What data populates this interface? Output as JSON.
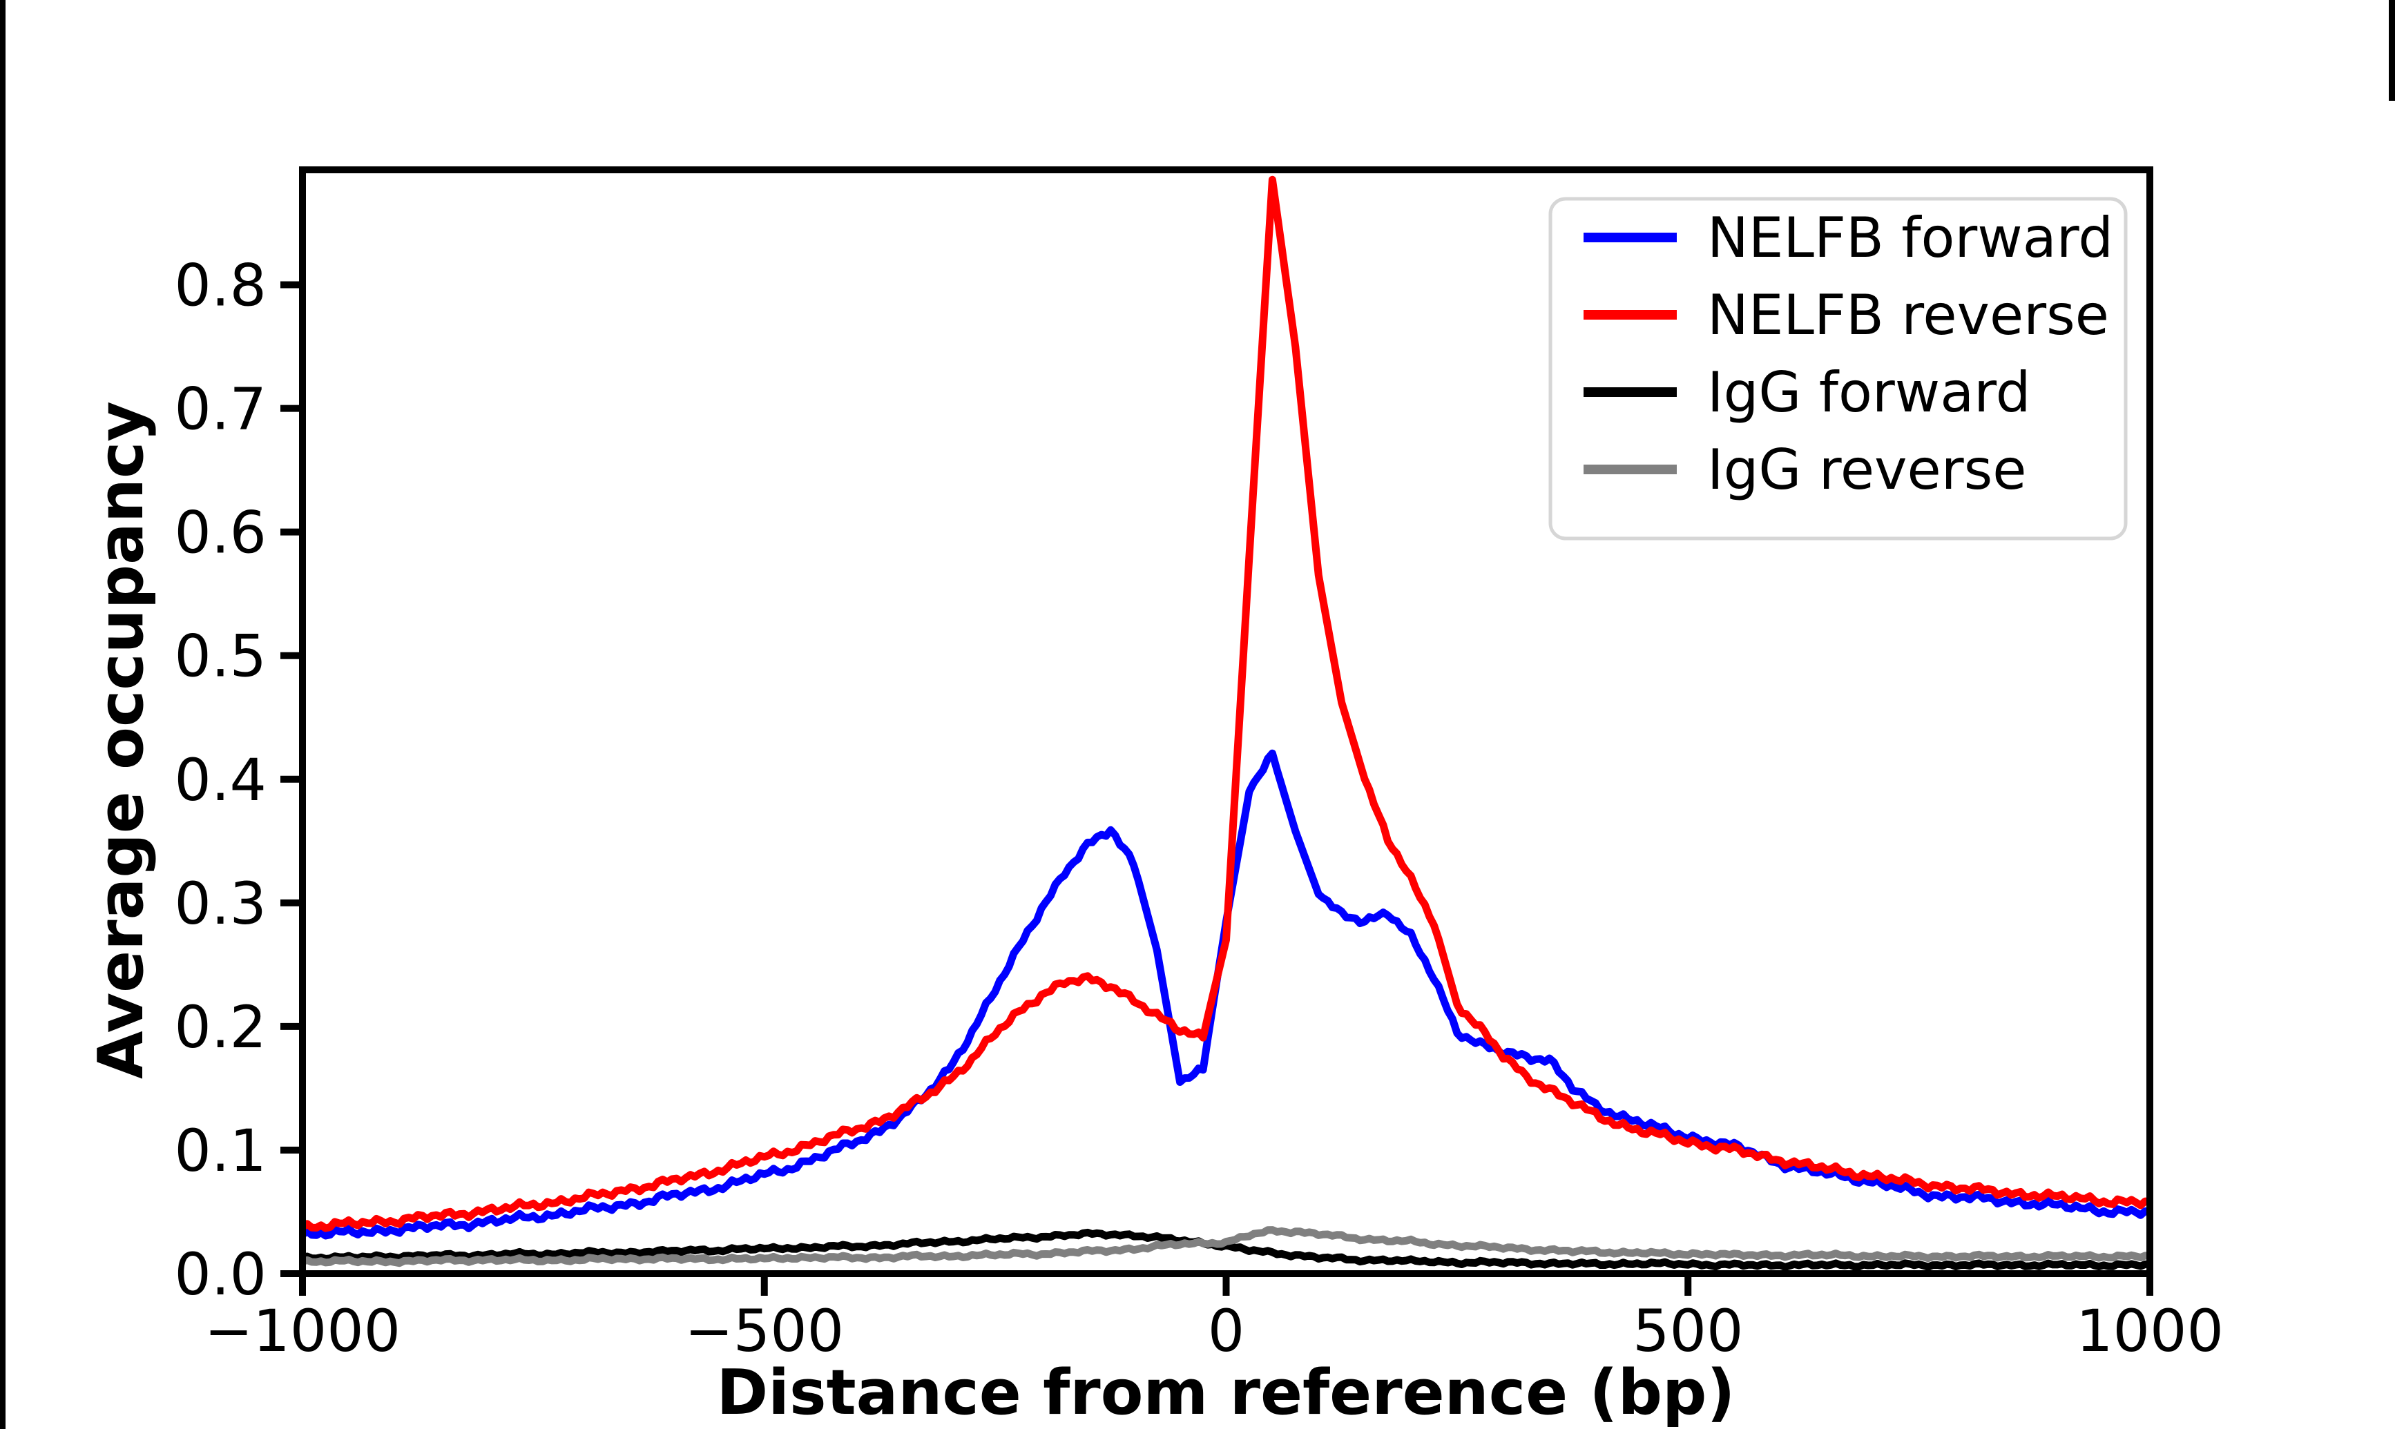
{
  "figure": {
    "background": "#ffffff",
    "edge_artifact_color": "#000000"
  },
  "chart_data": {
    "type": "line",
    "title": "",
    "xlabel": "Distance from reference (bp)",
    "ylabel": "Average occupancy",
    "xlim": [
      -1000,
      1000
    ],
    "ylim": [
      0,
      0.893
    ],
    "grid": false,
    "legend_position": "upper right",
    "x_ticks": [
      -1000,
      -500,
      0,
      500,
      1000
    ],
    "x_tick_labels": [
      "−1000",
      "−500",
      "0",
      "500",
      "1000"
    ],
    "y_ticks": [
      0.0,
      0.1,
      0.2,
      0.3,
      0.4,
      0.5,
      0.6,
      0.7,
      0.8
    ],
    "y_tick_labels": [
      "0.0",
      "0.1",
      "0.2",
      "0.3",
      "0.4",
      "0.5",
      "0.6",
      "0.7",
      "0.8"
    ],
    "x": [
      -1000,
      -975,
      -950,
      -925,
      -900,
      -875,
      -850,
      -825,
      -800,
      -775,
      -750,
      -725,
      -700,
      -675,
      -650,
      -625,
      -600,
      -575,
      -550,
      -525,
      -500,
      -475,
      -450,
      -425,
      -400,
      -375,
      -350,
      -325,
      -300,
      -275,
      -250,
      -225,
      -200,
      -175,
      -150,
      -125,
      -100,
      -75,
      -50,
      -25,
      0,
      25,
      50,
      75,
      100,
      125,
      150,
      175,
      200,
      225,
      250,
      275,
      300,
      325,
      350,
      375,
      400,
      425,
      450,
      475,
      500,
      525,
      550,
      575,
      600,
      625,
      650,
      675,
      700,
      725,
      750,
      775,
      800,
      825,
      850,
      875,
      900,
      925,
      950,
      975,
      1000
    ],
    "series": [
      {
        "name": "NELFB forward",
        "color": "#0000ff",
        "values": [
          0.032,
          0.033,
          0.033,
          0.034,
          0.036,
          0.037,
          0.039,
          0.04,
          0.042,
          0.044,
          0.046,
          0.048,
          0.051,
          0.053,
          0.056,
          0.059,
          0.063,
          0.066,
          0.07,
          0.075,
          0.08,
          0.085,
          0.092,
          0.099,
          0.107,
          0.116,
          0.128,
          0.144,
          0.166,
          0.196,
          0.229,
          0.263,
          0.296,
          0.324,
          0.346,
          0.36,
          0.332,
          0.262,
          0.155,
          0.166,
          0.285,
          0.39,
          0.42,
          0.358,
          0.307,
          0.29,
          0.286,
          0.292,
          0.272,
          0.24,
          0.196,
          0.185,
          0.179,
          0.176,
          0.173,
          0.15,
          0.136,
          0.128,
          0.122,
          0.116,
          0.111,
          0.107,
          0.103,
          0.097,
          0.089,
          0.084,
          0.081,
          0.078,
          0.074,
          0.07,
          0.065,
          0.063,
          0.062,
          0.06,
          0.058,
          0.057,
          0.055,
          0.053,
          0.051,
          0.05,
          0.049
        ]
      },
      {
        "name": "NELFB reverse",
        "color": "#ff0000",
        "values": [
          0.038,
          0.039,
          0.04,
          0.042,
          0.043,
          0.045,
          0.047,
          0.049,
          0.051,
          0.053,
          0.056,
          0.058,
          0.061,
          0.064,
          0.068,
          0.071,
          0.075,
          0.079,
          0.084,
          0.089,
          0.094,
          0.099,
          0.105,
          0.111,
          0.117,
          0.124,
          0.133,
          0.143,
          0.157,
          0.174,
          0.194,
          0.211,
          0.226,
          0.236,
          0.238,
          0.233,
          0.222,
          0.208,
          0.197,
          0.192,
          0.27,
          0.58,
          0.885,
          0.75,
          0.565,
          0.462,
          0.4,
          0.352,
          0.318,
          0.284,
          0.218,
          0.198,
          0.176,
          0.16,
          0.149,
          0.138,
          0.129,
          0.121,
          0.115,
          0.111,
          0.107,
          0.103,
          0.1,
          0.096,
          0.092,
          0.088,
          0.085,
          0.082,
          0.079,
          0.076,
          0.073,
          0.071,
          0.069,
          0.067,
          0.065,
          0.064,
          0.062,
          0.061,
          0.059,
          0.058,
          0.057
        ]
      },
      {
        "name": "IgG forward",
        "color": "#000000",
        "values": [
          0.013,
          0.013,
          0.013,
          0.014,
          0.014,
          0.014,
          0.015,
          0.015,
          0.015,
          0.016,
          0.016,
          0.016,
          0.017,
          0.017,
          0.017,
          0.018,
          0.018,
          0.019,
          0.019,
          0.02,
          0.02,
          0.021,
          0.021,
          0.022,
          0.022,
          0.023,
          0.024,
          0.025,
          0.026,
          0.027,
          0.028,
          0.029,
          0.03,
          0.031,
          0.032,
          0.032,
          0.031,
          0.029,
          0.027,
          0.025,
          0.022,
          0.019,
          0.017,
          0.015,
          0.013,
          0.012,
          0.011,
          0.011,
          0.01,
          0.01,
          0.009,
          0.009,
          0.009,
          0.009,
          0.008,
          0.008,
          0.008,
          0.008,
          0.008,
          0.008,
          0.008,
          0.007,
          0.007,
          0.007,
          0.007,
          0.007,
          0.007,
          0.007,
          0.007,
          0.007,
          0.007,
          0.007,
          0.007,
          0.007,
          0.007,
          0.007,
          0.007,
          0.007,
          0.007,
          0.007,
          0.007
        ]
      },
      {
        "name": "IgG reverse",
        "color": "#808080",
        "values": [
          0.01,
          0.01,
          0.01,
          0.01,
          0.01,
          0.01,
          0.011,
          0.011,
          0.011,
          0.011,
          0.011,
          0.011,
          0.011,
          0.012,
          0.012,
          0.012,
          0.012,
          0.012,
          0.012,
          0.012,
          0.012,
          0.013,
          0.013,
          0.013,
          0.013,
          0.013,
          0.014,
          0.014,
          0.014,
          0.015,
          0.015,
          0.016,
          0.016,
          0.017,
          0.018,
          0.019,
          0.02,
          0.022,
          0.024,
          0.025,
          0.025,
          0.031,
          0.035,
          0.034,
          0.032,
          0.03,
          0.028,
          0.027,
          0.026,
          0.024,
          0.023,
          0.022,
          0.021,
          0.02,
          0.019,
          0.018,
          0.018,
          0.017,
          0.017,
          0.016,
          0.016,
          0.016,
          0.015,
          0.015,
          0.015,
          0.015,
          0.015,
          0.015,
          0.014,
          0.014,
          0.014,
          0.014,
          0.014,
          0.014,
          0.014,
          0.014,
          0.014,
          0.014,
          0.014,
          0.014,
          0.014
        ]
      }
    ]
  }
}
